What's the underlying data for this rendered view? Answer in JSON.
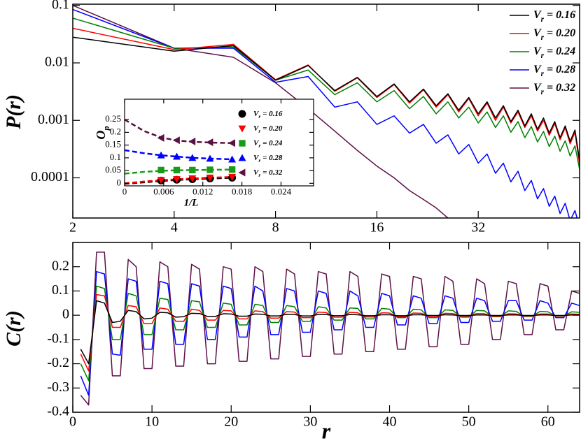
{
  "chart_data": [
    {
      "type": "line",
      "ylabel": "P(r)",
      "xscale": "log",
      "yscale": "log",
      "xlim": [
        2,
        64
      ],
      "ylim": [
        2e-05,
        0.105
      ],
      "xticks": [
        2,
        4,
        8,
        16,
        32
      ],
      "yticks": [
        0.1,
        0.01,
        0.001,
        0.0001
      ],
      "legend": "upper right",
      "x": [
        2,
        4,
        6,
        8,
        10,
        12,
        14,
        16,
        18,
        20,
        22,
        24,
        26,
        28,
        30,
        32,
        34,
        36,
        38,
        40,
        42,
        44,
        46,
        48,
        50,
        52,
        54,
        56,
        58,
        60,
        62,
        64
      ],
      "series": [
        {
          "name": "Vr = 0.16",
          "color": "#000000",
          "values": [
            0.028,
            0.016,
            0.02,
            0.005,
            0.009,
            0.0033,
            0.0056,
            0.0026,
            0.0043,
            0.0021,
            0.0035,
            0.0018,
            0.0029,
            0.0015,
            0.0025,
            0.0013,
            0.0021,
            0.0011,
            0.0018,
            0.00095,
            0.0015,
            0.0008,
            0.0013,
            0.0007,
            0.0011,
            0.0006,
            0.00095,
            0.0005,
            0.0008,
            0.00043,
            0.00068,
            0.0002
          ]
        },
        {
          "name": "Vr = 0.20",
          "color": "#ff0000",
          "values": [
            0.04,
            0.017,
            0.021,
            0.0051,
            0.0092,
            0.0032,
            0.0055,
            0.0025,
            0.0042,
            0.002,
            0.0034,
            0.0017,
            0.0028,
            0.0014,
            0.0024,
            0.0012,
            0.002,
            0.001,
            0.0017,
            0.0009,
            0.0014,
            0.00075,
            0.0012,
            0.00065,
            0.001,
            0.00055,
            0.00088,
            0.00046,
            0.00074,
            0.00039,
            0.00062,
            0.00017
          ]
        },
        {
          "name": "Vr = 0.24",
          "color": "#008000",
          "values": [
            0.06,
            0.018,
            0.019,
            0.005,
            0.0075,
            0.0028,
            0.0045,
            0.0021,
            0.0033,
            0.0016,
            0.0026,
            0.0013,
            0.0021,
            0.0011,
            0.0017,
            0.0009,
            0.0014,
            0.00075,
            0.0012,
            0.00062,
            0.00095,
            0.0005,
            0.00078,
            0.00042,
            0.00064,
            0.00035,
            0.00053,
            0.00029,
            0.00044,
            0.00024,
            0.00036,
            0.00014
          ]
        },
        {
          "name": "Vr = 0.28",
          "color": "#0000ff",
          "values": [
            0.085,
            0.018,
            0.018,
            0.0046,
            0.0058,
            0.0017,
            0.0021,
            0.00085,
            0.0012,
            0.0006,
            0.00085,
            0.0004,
            0.00056,
            0.00026,
            0.00038,
            0.00018,
            0.00026,
            0.00012,
            0.00018,
            8.5e-05,
            0.00013,
            6e-05,
            9e-05,
            4.3e-05,
            6.5e-05,
            3.2e-05,
            4.8e-05,
            2.4e-05,
            3.6e-05,
            1.8e-05,
            2.7e-05,
            1.4e-05
          ]
        },
        {
          "name": "Vr = 0.32",
          "color": "#5e1048",
          "values": [
            0.1,
            0.018,
            0.0125,
            0.0045,
            0.0016,
            0.00065,
            0.0003,
            0.00016,
            0.0001,
            6e-05,
            4.2e-05,
            3e-05,
            2e-05,
            1.5e-05,
            null,
            null,
            null,
            null,
            null,
            null,
            null,
            null,
            null,
            null,
            null,
            null,
            null,
            null,
            null,
            null,
            null,
            null
          ]
        }
      ]
    },
    {
      "type": "scatter",
      "xlabel": "1/L",
      "ylabel": "Op",
      "xlim": [
        0,
        0.029
      ],
      "ylim": [
        -0.01,
        0.33
      ],
      "xticks": [
        0,
        0.006,
        0.012,
        0.018,
        0.024
      ],
      "yticks": [
        0,
        0.05,
        0.1,
        0.15,
        0.2,
        0.25
      ],
      "legend": "right",
      "x": [
        0.0056,
        0.008,
        0.0104,
        0.0131,
        0.0165
      ],
      "fit_x": [
        0,
        0.003,
        0.0056,
        0.008,
        0.0104,
        0.0131,
        0.0165
      ],
      "series": [
        {
          "name": "Vr = 0.16",
          "color": "#000000",
          "marker": "circle",
          "values": [
            0.011,
            0.014,
            0.016,
            0.019,
            0.022
          ],
          "fit_values": [
            -0.002,
            0.004,
            0.009,
            0.013,
            0.016,
            0.019,
            0.022
          ]
        },
        {
          "name": "Vr = 0.20",
          "color": "#ff0000",
          "marker": "triangle-down",
          "values": [
            0.013,
            0.016,
            0.019,
            0.022,
            0.025
          ],
          "fit_values": [
            0.0,
            0.007,
            0.012,
            0.016,
            0.019,
            0.022,
            0.025
          ]
        },
        {
          "name": "Vr = 0.24",
          "color": "#1a9a1a",
          "marker": "square",
          "values": [
            0.052,
            0.052,
            0.052,
            0.053,
            0.054
          ],
          "fit_values": [
            0.038,
            0.045,
            0.049,
            0.051,
            0.052,
            0.053,
            0.054
          ]
        },
        {
          "name": "Vr = 0.28",
          "color": "#0000ff",
          "marker": "triangle-up",
          "values": [
            0.11,
            0.105,
            0.1,
            0.097,
            0.094
          ],
          "fit_values": [
            0.13,
            0.118,
            0.11,
            0.105,
            0.1,
            0.097,
            0.094
          ]
        },
        {
          "name": "Vr = 0.32",
          "color": "#5a1040",
          "marker": "triangle-left",
          "values": [
            0.178,
            0.169,
            0.164,
            0.161,
            0.158
          ],
          "fit_values": [
            0.25,
            0.205,
            0.18,
            0.168,
            0.163,
            0.16,
            0.158
          ]
        }
      ]
    },
    {
      "type": "line",
      "xlabel": "r",
      "ylabel": "C(r)",
      "xlim": [
        0,
        64
      ],
      "ylim": [
        -0.4,
        0.3
      ],
      "xticks": [
        0,
        10,
        20,
        30,
        40,
        50,
        60
      ],
      "yticks": [
        -0.4,
        -0.3,
        -0.2,
        -0.1,
        0,
        0.1,
        0.2
      ],
      "x": [
        1,
        2,
        3,
        4,
        5,
        6,
        7,
        8,
        9,
        10,
        11,
        12,
        13,
        14,
        15,
        16,
        17,
        18,
        19,
        20,
        21,
        22,
        23,
        24,
        25,
        26,
        27,
        28,
        29,
        30,
        31,
        32,
        33,
        34,
        35,
        36,
        37,
        38,
        39,
        40,
        41,
        42,
        43,
        44,
        45,
        46,
        47,
        48,
        49,
        50,
        51,
        52,
        53,
        54,
        55,
        56,
        57,
        58,
        59,
        60,
        61,
        62,
        63,
        64
      ],
      "series": [
        {
          "color": "#000000",
          "values": [
            -0.14,
            -0.2,
            0.06,
            0.05,
            -0.03,
            -0.025,
            0.02,
            0.015,
            -0.015,
            -0.012,
            0.012,
            0.01,
            -0.008,
            -0.006,
            0.008,
            0.007,
            -0.005,
            -0.005,
            0.006,
            0.005,
            -0.004,
            -0.004,
            0.005,
            0.004,
            -0.003,
            -0.003,
            0.004,
            0.003,
            -0.003,
            -0.003,
            0.003,
            0.003,
            -0.002,
            -0.002,
            0.003,
            0.002,
            -0.002,
            -0.002,
            0.002,
            0.002,
            -0.002,
            -0.002,
            0.002,
            0.002,
            -0.001,
            -0.001,
            0.002,
            0.001,
            -0.001,
            -0.001,
            0.001,
            0.001,
            -0.001,
            -0.001,
            0.001,
            0.001,
            -0.001,
            -0.001,
            0.001,
            0.001,
            -0.001,
            -0.001,
            0.001,
            0.001
          ]
        },
        {
          "color": "#ff0000",
          "values": [
            -0.16,
            -0.23,
            0.085,
            0.08,
            -0.05,
            -0.05,
            0.04,
            0.035,
            -0.035,
            -0.035,
            0.03,
            0.025,
            -0.025,
            -0.025,
            0.025,
            0.02,
            -0.02,
            -0.02,
            0.02,
            0.018,
            -0.015,
            -0.015,
            0.018,
            0.015,
            -0.012,
            -0.012,
            0.015,
            0.013,
            -0.01,
            -0.01,
            0.013,
            0.011,
            -0.008,
            -0.008,
            0.012,
            0.01,
            -0.007,
            -0.007,
            0.01,
            0.009,
            -0.006,
            -0.006,
            0.009,
            0.008,
            -0.005,
            -0.005,
            0.008,
            0.007,
            -0.004,
            -0.004,
            0.007,
            0.006,
            -0.004,
            -0.004,
            0.006,
            0.005,
            -0.003,
            -0.003,
            0.005,
            0.005,
            -0.003,
            -0.003,
            0.005,
            0.004
          ]
        },
        {
          "color": "#008000",
          "values": [
            -0.2,
            -0.27,
            0.12,
            0.11,
            -0.1,
            -0.1,
            0.09,
            0.08,
            -0.08,
            -0.08,
            0.07,
            0.065,
            -0.06,
            -0.06,
            0.06,
            0.055,
            -0.05,
            -0.05,
            0.05,
            0.045,
            -0.04,
            -0.04,
            0.045,
            0.04,
            -0.03,
            -0.03,
            0.04,
            0.035,
            -0.025,
            -0.025,
            0.035,
            0.03,
            -0.02,
            -0.02,
            0.03,
            0.028,
            -0.015,
            -0.015,
            0.028,
            0.025,
            -0.01,
            -0.01,
            0.025,
            0.022,
            -0.01,
            -0.01,
            0.022,
            0.02,
            -0.008,
            -0.008,
            0.02,
            0.018,
            -0.006,
            -0.006,
            0.018,
            0.016,
            -0.005,
            -0.005,
            0.016,
            0.014,
            -0.004,
            -0.004,
            0.014,
            0.012
          ]
        },
        {
          "color": "#0000ff",
          "values": [
            -0.25,
            -0.33,
            0.18,
            0.17,
            -0.16,
            -0.165,
            0.15,
            0.14,
            -0.14,
            -0.14,
            0.14,
            0.13,
            -0.12,
            -0.12,
            0.13,
            0.12,
            -0.1,
            -0.1,
            0.12,
            0.11,
            -0.09,
            -0.09,
            0.12,
            0.1,
            -0.08,
            -0.08,
            0.11,
            0.1,
            -0.07,
            -0.07,
            0.1,
            0.09,
            -0.06,
            -0.06,
            0.1,
            0.08,
            -0.05,
            -0.05,
            0.09,
            0.08,
            -0.04,
            -0.04,
            0.08,
            0.07,
            -0.035,
            -0.035,
            0.08,
            0.07,
            -0.03,
            -0.03,
            0.07,
            0.06,
            -0.025,
            -0.025,
            0.06,
            0.06,
            -0.02,
            -0.02,
            0.06,
            0.05,
            -0.01,
            -0.01,
            0.05,
            0.04
          ]
        },
        {
          "color": "#5e1048",
          "values": [
            -0.33,
            -0.37,
            0.26,
            0.26,
            -0.25,
            -0.25,
            0.23,
            0.2,
            -0.22,
            -0.22,
            0.22,
            0.2,
            -0.21,
            -0.21,
            0.21,
            0.19,
            -0.2,
            -0.2,
            0.2,
            0.19,
            -0.19,
            -0.19,
            0.2,
            0.18,
            -0.18,
            -0.18,
            0.19,
            0.17,
            -0.17,
            -0.17,
            0.18,
            0.17,
            -0.16,
            -0.16,
            0.18,
            0.16,
            -0.15,
            -0.15,
            0.17,
            0.16,
            -0.14,
            -0.14,
            0.16,
            0.15,
            -0.13,
            -0.13,
            0.16,
            0.14,
            -0.12,
            -0.12,
            0.15,
            0.13,
            -0.1,
            -0.1,
            0.14,
            0.13,
            -0.08,
            -0.08,
            0.13,
            0.12,
            -0.06,
            -0.06,
            0.1,
            0.09
          ]
        }
      ]
    }
  ]
}
